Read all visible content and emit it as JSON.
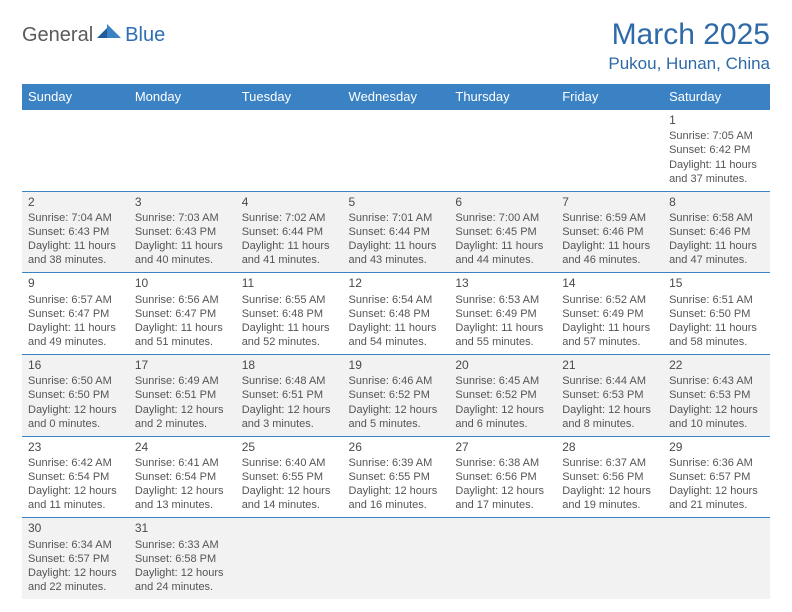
{
  "logo": {
    "part1": "General",
    "part2": "Blue"
  },
  "title": "March 2025",
  "location": "Pukou, Hunan, China",
  "colors": {
    "header_bg": "#3b82c4",
    "header_text": "#ffffff",
    "title_color": "#2f6aa8",
    "row_alt_bg": "#f2f2f2",
    "border": "#3b82c4"
  },
  "weekdays": [
    "Sunday",
    "Monday",
    "Tuesday",
    "Wednesday",
    "Thursday",
    "Friday",
    "Saturday"
  ],
  "weeks": [
    [
      null,
      null,
      null,
      null,
      null,
      null,
      {
        "d": "1",
        "sr": "Sunrise: 7:05 AM",
        "ss": "Sunset: 6:42 PM",
        "dl": "Daylight: 11 hours and 37 minutes."
      }
    ],
    [
      {
        "d": "2",
        "sr": "Sunrise: 7:04 AM",
        "ss": "Sunset: 6:43 PM",
        "dl": "Daylight: 11 hours and 38 minutes."
      },
      {
        "d": "3",
        "sr": "Sunrise: 7:03 AM",
        "ss": "Sunset: 6:43 PM",
        "dl": "Daylight: 11 hours and 40 minutes."
      },
      {
        "d": "4",
        "sr": "Sunrise: 7:02 AM",
        "ss": "Sunset: 6:44 PM",
        "dl": "Daylight: 11 hours and 41 minutes."
      },
      {
        "d": "5",
        "sr": "Sunrise: 7:01 AM",
        "ss": "Sunset: 6:44 PM",
        "dl": "Daylight: 11 hours and 43 minutes."
      },
      {
        "d": "6",
        "sr": "Sunrise: 7:00 AM",
        "ss": "Sunset: 6:45 PM",
        "dl": "Daylight: 11 hours and 44 minutes."
      },
      {
        "d": "7",
        "sr": "Sunrise: 6:59 AM",
        "ss": "Sunset: 6:46 PM",
        "dl": "Daylight: 11 hours and 46 minutes."
      },
      {
        "d": "8",
        "sr": "Sunrise: 6:58 AM",
        "ss": "Sunset: 6:46 PM",
        "dl": "Daylight: 11 hours and 47 minutes."
      }
    ],
    [
      {
        "d": "9",
        "sr": "Sunrise: 6:57 AM",
        "ss": "Sunset: 6:47 PM",
        "dl": "Daylight: 11 hours and 49 minutes."
      },
      {
        "d": "10",
        "sr": "Sunrise: 6:56 AM",
        "ss": "Sunset: 6:47 PM",
        "dl": "Daylight: 11 hours and 51 minutes."
      },
      {
        "d": "11",
        "sr": "Sunrise: 6:55 AM",
        "ss": "Sunset: 6:48 PM",
        "dl": "Daylight: 11 hours and 52 minutes."
      },
      {
        "d": "12",
        "sr": "Sunrise: 6:54 AM",
        "ss": "Sunset: 6:48 PM",
        "dl": "Daylight: 11 hours and 54 minutes."
      },
      {
        "d": "13",
        "sr": "Sunrise: 6:53 AM",
        "ss": "Sunset: 6:49 PM",
        "dl": "Daylight: 11 hours and 55 minutes."
      },
      {
        "d": "14",
        "sr": "Sunrise: 6:52 AM",
        "ss": "Sunset: 6:49 PM",
        "dl": "Daylight: 11 hours and 57 minutes."
      },
      {
        "d": "15",
        "sr": "Sunrise: 6:51 AM",
        "ss": "Sunset: 6:50 PM",
        "dl": "Daylight: 11 hours and 58 minutes."
      }
    ],
    [
      {
        "d": "16",
        "sr": "Sunrise: 6:50 AM",
        "ss": "Sunset: 6:50 PM",
        "dl": "Daylight: 12 hours and 0 minutes."
      },
      {
        "d": "17",
        "sr": "Sunrise: 6:49 AM",
        "ss": "Sunset: 6:51 PM",
        "dl": "Daylight: 12 hours and 2 minutes."
      },
      {
        "d": "18",
        "sr": "Sunrise: 6:48 AM",
        "ss": "Sunset: 6:51 PM",
        "dl": "Daylight: 12 hours and 3 minutes."
      },
      {
        "d": "19",
        "sr": "Sunrise: 6:46 AM",
        "ss": "Sunset: 6:52 PM",
        "dl": "Daylight: 12 hours and 5 minutes."
      },
      {
        "d": "20",
        "sr": "Sunrise: 6:45 AM",
        "ss": "Sunset: 6:52 PM",
        "dl": "Daylight: 12 hours and 6 minutes."
      },
      {
        "d": "21",
        "sr": "Sunrise: 6:44 AM",
        "ss": "Sunset: 6:53 PM",
        "dl": "Daylight: 12 hours and 8 minutes."
      },
      {
        "d": "22",
        "sr": "Sunrise: 6:43 AM",
        "ss": "Sunset: 6:53 PM",
        "dl": "Daylight: 12 hours and 10 minutes."
      }
    ],
    [
      {
        "d": "23",
        "sr": "Sunrise: 6:42 AM",
        "ss": "Sunset: 6:54 PM",
        "dl": "Daylight: 12 hours and 11 minutes."
      },
      {
        "d": "24",
        "sr": "Sunrise: 6:41 AM",
        "ss": "Sunset: 6:54 PM",
        "dl": "Daylight: 12 hours and 13 minutes."
      },
      {
        "d": "25",
        "sr": "Sunrise: 6:40 AM",
        "ss": "Sunset: 6:55 PM",
        "dl": "Daylight: 12 hours and 14 minutes."
      },
      {
        "d": "26",
        "sr": "Sunrise: 6:39 AM",
        "ss": "Sunset: 6:55 PM",
        "dl": "Daylight: 12 hours and 16 minutes."
      },
      {
        "d": "27",
        "sr": "Sunrise: 6:38 AM",
        "ss": "Sunset: 6:56 PM",
        "dl": "Daylight: 12 hours and 17 minutes."
      },
      {
        "d": "28",
        "sr": "Sunrise: 6:37 AM",
        "ss": "Sunset: 6:56 PM",
        "dl": "Daylight: 12 hours and 19 minutes."
      },
      {
        "d": "29",
        "sr": "Sunrise: 6:36 AM",
        "ss": "Sunset: 6:57 PM",
        "dl": "Daylight: 12 hours and 21 minutes."
      }
    ],
    [
      {
        "d": "30",
        "sr": "Sunrise: 6:34 AM",
        "ss": "Sunset: 6:57 PM",
        "dl": "Daylight: 12 hours and 22 minutes."
      },
      {
        "d": "31",
        "sr": "Sunrise: 6:33 AM",
        "ss": "Sunset: 6:58 PM",
        "dl": "Daylight: 12 hours and 24 minutes."
      },
      null,
      null,
      null,
      null,
      null
    ]
  ]
}
